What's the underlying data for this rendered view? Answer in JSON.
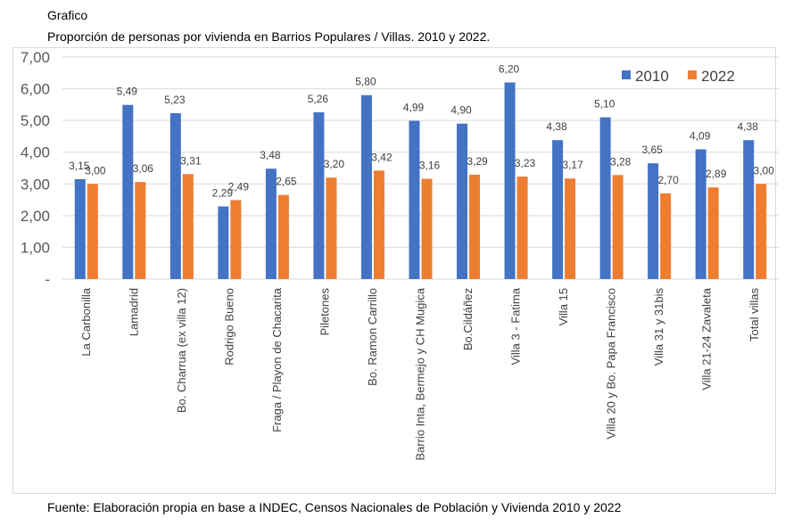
{
  "header": {
    "heading": "Grafico",
    "subtitle": "Proporción de personas por vivienda en Barrios Populares / Villas. 2010 y 2022."
  },
  "footer": {
    "source": "Fuente: Elaboración propia en base a INDEC, Censos Nacionales de Población y Vivienda 2010 y 2022"
  },
  "chart_data": {
    "type": "bar",
    "title": "",
    "xlabel": "",
    "ylabel": "",
    "ylim": [
      0,
      7
    ],
    "yticks": [
      "-",
      "1,00",
      "2,00",
      "3,00",
      "4,00",
      "5,00",
      "6,00",
      "7,00"
    ],
    "grid": true,
    "legend_position": "top-right",
    "categories": [
      "La Carbonilla",
      "Lamadrid",
      "Bo. Charrua (ex villa 12)",
      "Rodrigo Bueno",
      "Fraga / Playon de Chacarita",
      "Piletones",
      "Bo. Ramon Carrillo",
      "Barrio Inta, Bermejo y CH Mugica",
      "Bo.Cildáñez",
      "Villa 3 - Fatima",
      "Villa 15",
      "Villa 20 y Bo. Papa Francisco",
      "Villa 31 y 31bis",
      "Villa 21-24 Zavaleta",
      "Total villas"
    ],
    "series": [
      {
        "name": "2010",
        "color": "#4472c4",
        "values": [
          3.15,
          5.49,
          5.23,
          2.29,
          3.48,
          5.26,
          5.8,
          4.99,
          4.9,
          6.2,
          4.38,
          5.1,
          3.65,
          4.09,
          4.38
        ],
        "labels": [
          "3,15",
          "5,49",
          "5,23",
          "2,29",
          "3,48",
          "5,26",
          "5,80",
          "4,99",
          "4,90",
          "6,20",
          "4,38",
          "5,10",
          "3,65",
          "4,09",
          "4,38"
        ]
      },
      {
        "name": "2022",
        "color": "#ed7d31",
        "values": [
          3.0,
          3.06,
          3.31,
          2.49,
          2.65,
          3.2,
          3.42,
          3.16,
          3.29,
          3.23,
          3.17,
          3.28,
          2.7,
          2.89,
          3.0
        ],
        "labels": [
          "3,00",
          "3,06",
          "3,31",
          "2,49",
          "2,65",
          "3,20",
          "3,42",
          "3,16",
          "3,29",
          "3,23",
          "3,17",
          "3,28",
          "2,70",
          "2,89",
          "3,00"
        ]
      }
    ]
  }
}
